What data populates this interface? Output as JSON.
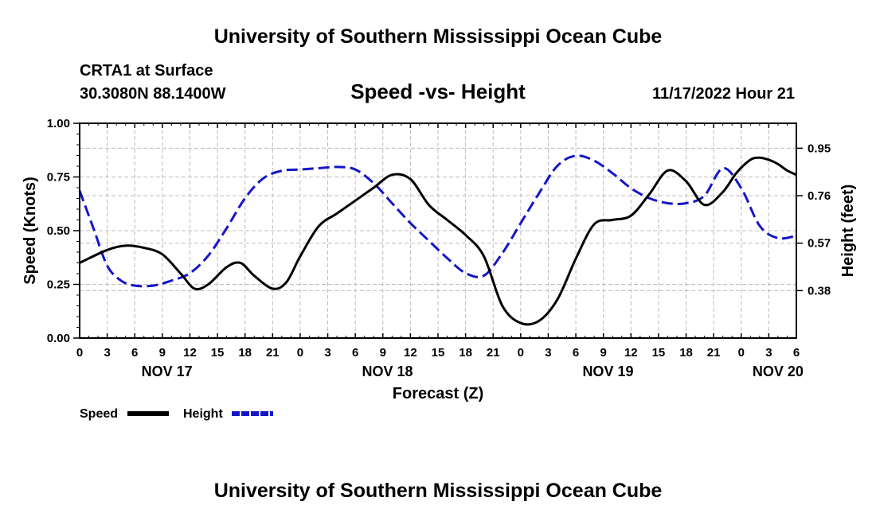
{
  "page": {
    "title": "University of Southern Mississippi Ocean Cube",
    "footer_title": "University of Southern Mississippi Ocean Cube"
  },
  "station": {
    "name": "CRTA1 at Surface",
    "coords": "30.3080N  88.1400W",
    "datetime": "11/17/2022 Hour 21"
  },
  "colors": {
    "speed": "#000000",
    "height": "#1515c8",
    "grid": "#bdbdbd"
  },
  "chart_data": {
    "type": "line",
    "title": "Speed -vs- Height",
    "xlabel": "Forecast (Z)",
    "ylabel": "Speed (Knots)",
    "y2label": "Height (feet)",
    "xlim": [
      0,
      78
    ],
    "ylim": [
      0,
      1
    ],
    "y2lim": [
      0.19,
      1.05
    ],
    "x_ticks": [
      0,
      3,
      6,
      9,
      12,
      15,
      18,
      21,
      24,
      27,
      30,
      33,
      36,
      39,
      42,
      45,
      48,
      51,
      54,
      57,
      60,
      63,
      66,
      69,
      72,
      75,
      78
    ],
    "x_tick_labels": [
      "0",
      "3",
      "6",
      "9",
      "12",
      "15",
      "18",
      "21",
      "0",
      "3",
      "6",
      "9",
      "12",
      "15",
      "18",
      "21",
      "0",
      "3",
      "6",
      "9",
      "12",
      "15",
      "18",
      "21",
      "0",
      "3",
      "6"
    ],
    "day_labels": [
      {
        "x": 9.5,
        "label": "NOV 17"
      },
      {
        "x": 33.5,
        "label": "NOV 18"
      },
      {
        "x": 57.5,
        "label": "NOV 19"
      },
      {
        "x": 76,
        "label": "NOV 20"
      }
    ],
    "y_ticks": [
      0,
      0.25,
      0.5,
      0.75,
      1.0
    ],
    "y_tick_labels": [
      "0.00",
      "0.25",
      "0.50",
      "0.75",
      "1.00"
    ],
    "y2_ticks": [
      0.38,
      0.57,
      0.76,
      0.95
    ],
    "y2_tick_labels": [
      "0.38",
      "0.57",
      "0.76",
      "0.95"
    ],
    "series": [
      {
        "name": "Speed",
        "axis": "left",
        "style": "solid",
        "x": [
          0,
          3,
          5,
          7,
          9,
          11,
          12.5,
          14,
          16,
          17.5,
          19,
          21,
          22.5,
          24,
          26,
          28,
          30,
          32,
          34,
          36,
          38,
          40,
          42,
          44,
          46,
          48,
          50,
          52,
          54,
          56,
          58,
          60,
          62,
          64,
          66,
          68,
          70,
          71.5,
          73,
          74,
          75,
          76,
          77,
          78
        ],
        "values": [
          0.35,
          0.41,
          0.43,
          0.42,
          0.39,
          0.3,
          0.23,
          0.25,
          0.33,
          0.35,
          0.29,
          0.23,
          0.26,
          0.38,
          0.52,
          0.58,
          0.64,
          0.7,
          0.76,
          0.74,
          0.62,
          0.55,
          0.48,
          0.38,
          0.15,
          0.07,
          0.08,
          0.18,
          0.37,
          0.53,
          0.55,
          0.57,
          0.67,
          0.78,
          0.73,
          0.62,
          0.68,
          0.77,
          0.83,
          0.84,
          0.83,
          0.81,
          0.78,
          0.76
        ]
      },
      {
        "name": "Height",
        "axis": "right",
        "style": "dashed",
        "x": [
          0,
          1.5,
          3,
          4.5,
          6,
          8,
          10,
          12,
          14,
          16,
          18,
          20,
          22,
          24,
          26,
          28,
          30,
          32,
          34,
          36,
          38,
          40,
          42,
          44,
          46,
          48,
          50,
          52,
          54,
          56,
          58,
          60,
          62,
          64,
          66,
          68,
          70,
          72,
          74,
          76,
          78
        ],
        "values": [
          0.78,
          0.63,
          0.48,
          0.42,
          0.4,
          0.4,
          0.42,
          0.45,
          0.52,
          0.63,
          0.75,
          0.83,
          0.86,
          0.865,
          0.87,
          0.875,
          0.865,
          0.81,
          0.73,
          0.65,
          0.58,
          0.51,
          0.45,
          0.44,
          0.53,
          0.65,
          0.77,
          0.88,
          0.92,
          0.9,
          0.85,
          0.79,
          0.75,
          0.73,
          0.73,
          0.76,
          0.87,
          0.79,
          0.64,
          0.59,
          0.6
        ]
      }
    ],
    "legend": {
      "position": "bottom-left",
      "items": [
        "Speed",
        "Height"
      ]
    },
    "grid": true
  }
}
